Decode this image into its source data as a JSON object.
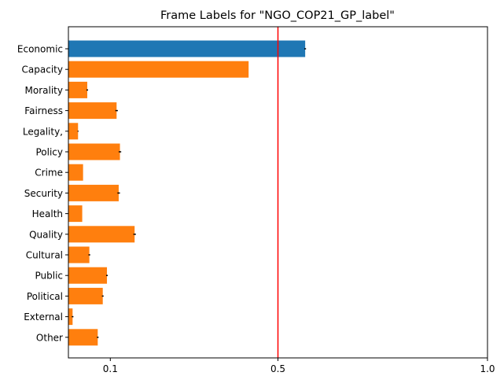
{
  "chart_data": {
    "type": "bar",
    "orientation": "horizontal",
    "title": "Frame Labels for \"NGO_COP21_GP_label\"",
    "xlabel": "",
    "ylabel": "",
    "categories": [
      "Economic",
      "Capacity",
      "Morality",
      "Fairness",
      "Legality,",
      "Policy",
      "Crime",
      "Security",
      "Health",
      "Quality",
      "Cultural",
      "Public",
      "Political",
      "External",
      "Other"
    ],
    "values": [
      0.565,
      0.43,
      0.045,
      0.115,
      0.023,
      0.123,
      0.035,
      0.12,
      0.033,
      0.158,
      0.05,
      0.092,
      0.082,
      0.01,
      0.07
    ],
    "errors": [
      0.002,
      0.0,
      0.002,
      0.003,
      0.001,
      0.003,
      0.0,
      0.003,
      0.0,
      0.003,
      0.002,
      0.002,
      0.002,
      0.002,
      0.002
    ],
    "bar_colors": [
      "#1f77b4",
      "#ff7f0e",
      "#ff7f0e",
      "#ff7f0e",
      "#ff7f0e",
      "#ff7f0e",
      "#ff7f0e",
      "#ff7f0e",
      "#ff7f0e",
      "#ff7f0e",
      "#ff7f0e",
      "#ff7f0e",
      "#ff7f0e",
      "#ff7f0e",
      "#ff7f0e"
    ],
    "xlim": [
      0.0,
      1.0
    ],
    "xticks": [
      0.1,
      0.5,
      1.0
    ],
    "xtick_labels": [
      "0.1",
      "0.5",
      "1.0"
    ],
    "reference_line": {
      "x": 0.5,
      "color": "#ff0000"
    },
    "grid": false,
    "legend": "none"
  }
}
